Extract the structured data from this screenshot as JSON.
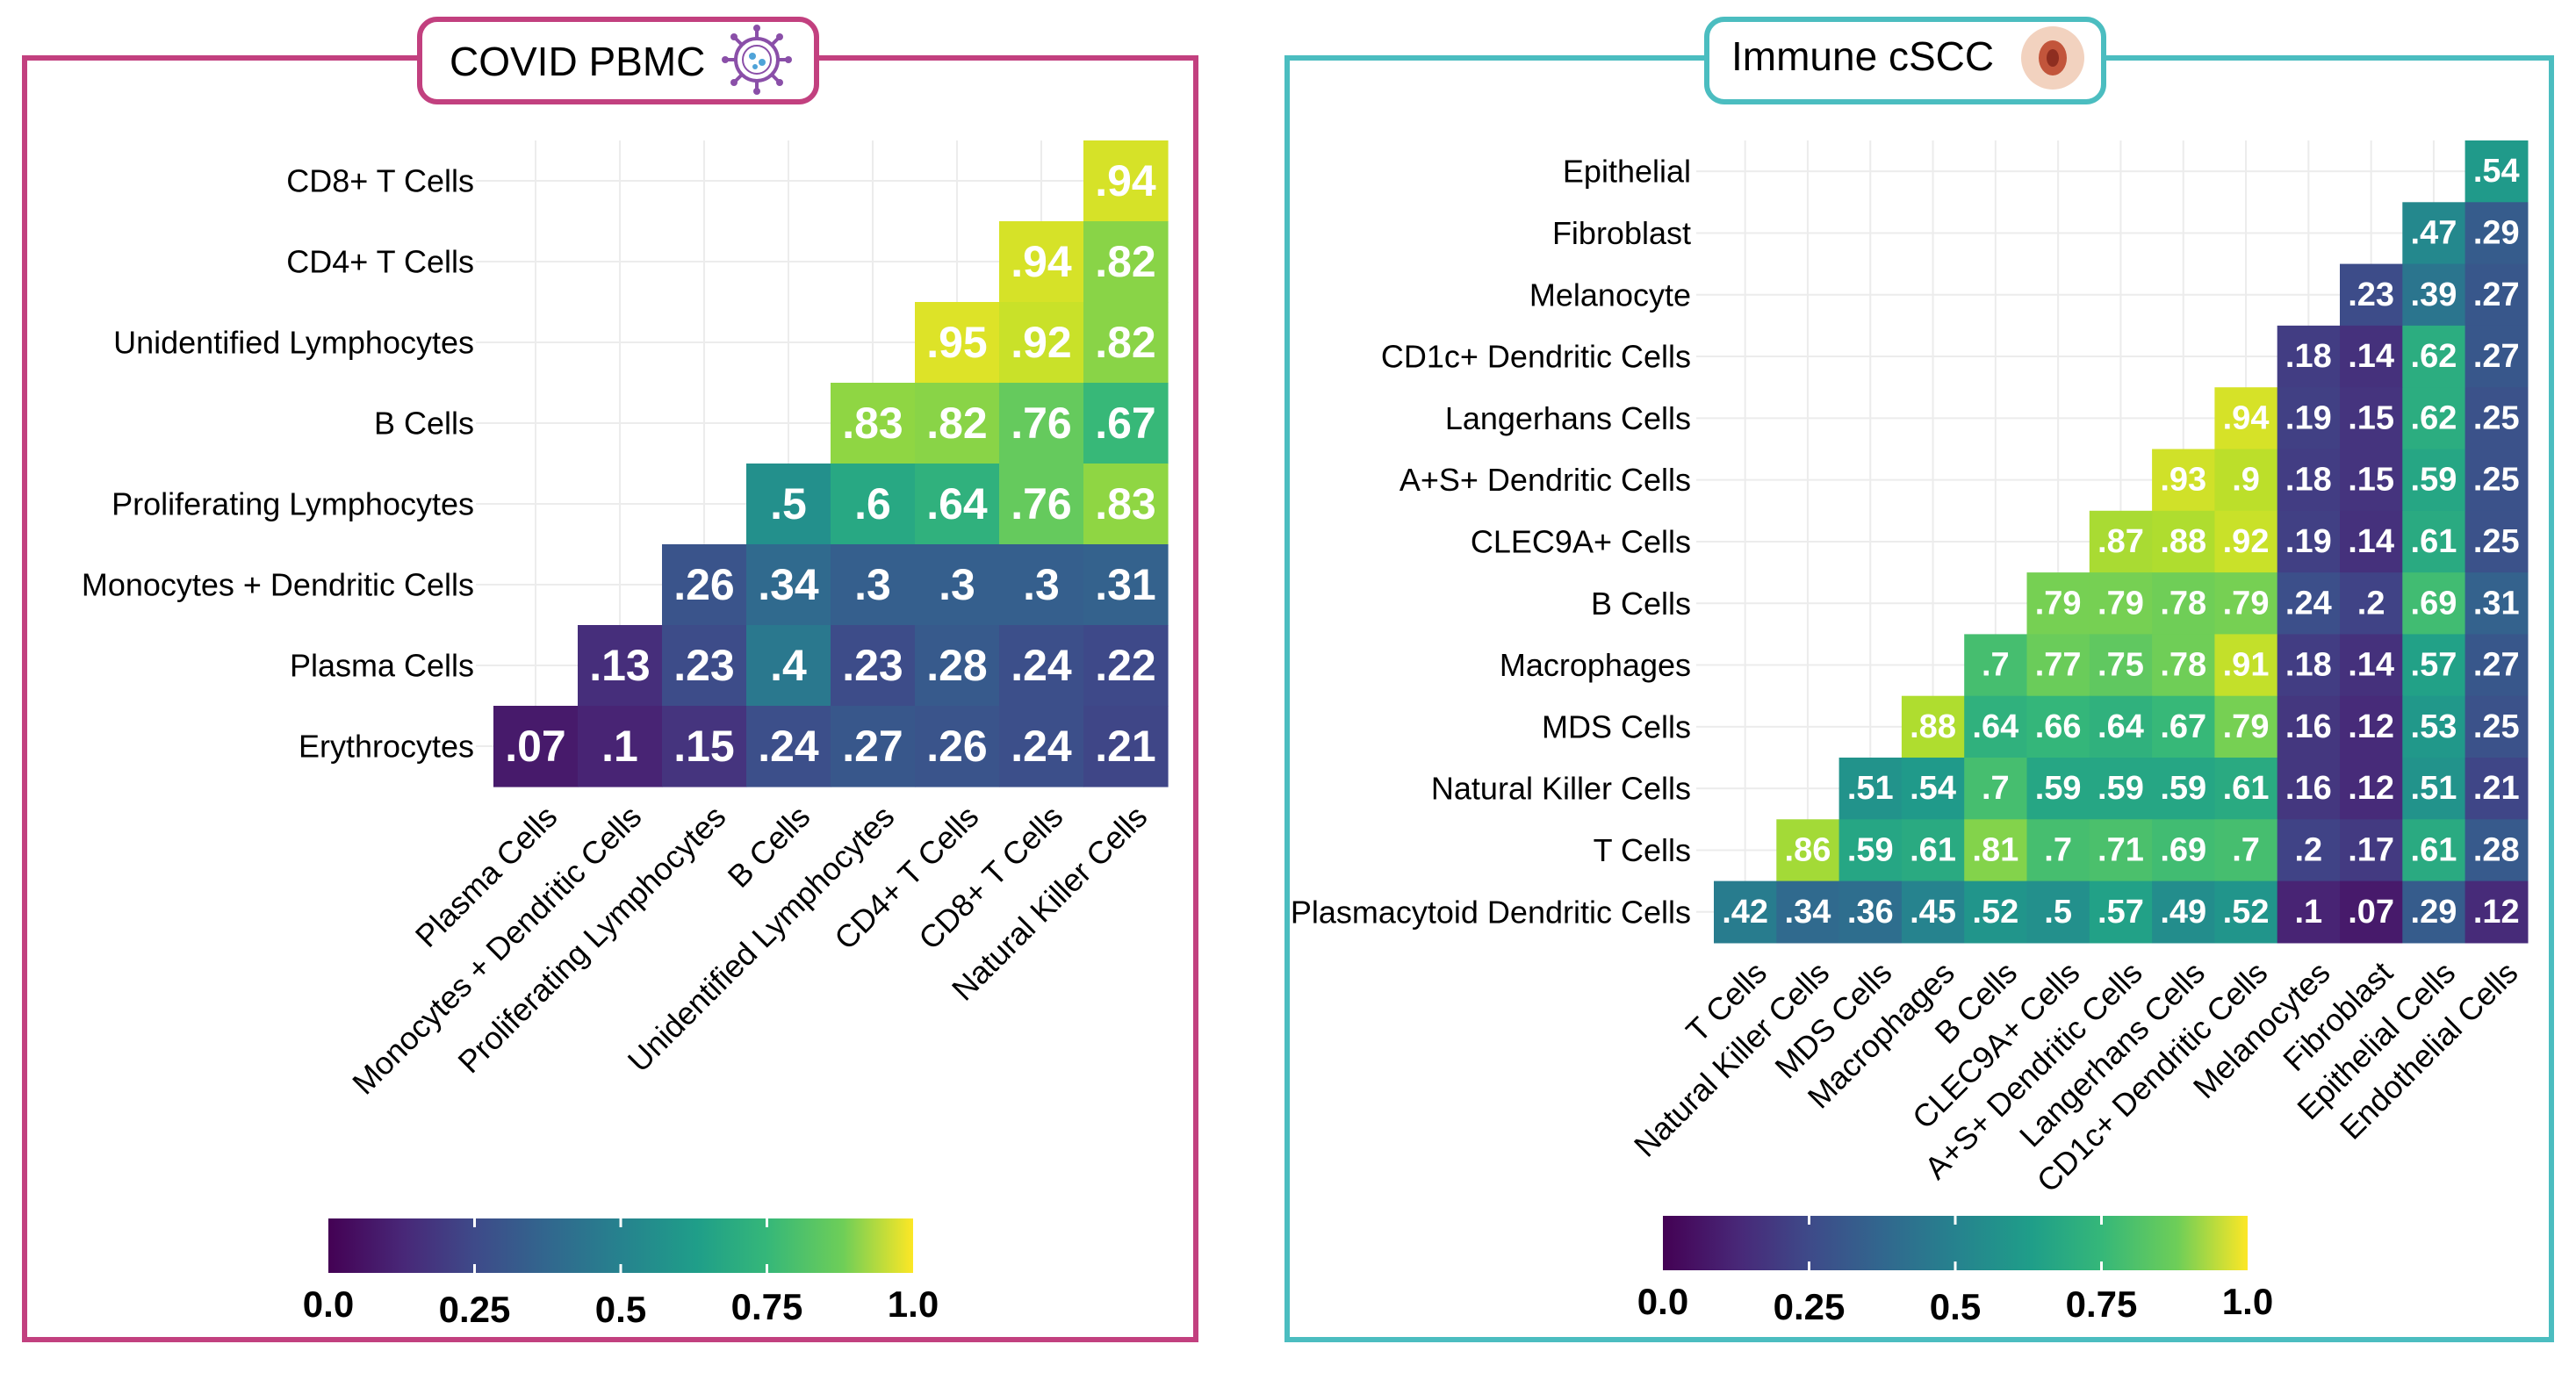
{
  "chart_data": [
    {
      "type": "heatmap",
      "title": "COVID PBMC",
      "title_icon": "virus-icon",
      "accent_color": "#C2407F",
      "row_labels": [
        "CD8+ T Cells",
        "CD4+ T Cells",
        "Unidentified Lymphocytes",
        "B Cells",
        "Proliferating Lymphocytes",
        "Monocytes + Dendritic Cells",
        "Plasma Cells",
        "Erythrocytes"
      ],
      "col_labels": [
        "Plasma Cells",
        "Monocytes + Dendritic Cells",
        "Proliferating Lymphocytes",
        "B Cells",
        "Unidentified Lymphocytes",
        "CD4+ T Cells",
        "CD8+ T Cells",
        "Natural Killer Cells"
      ],
      "cells": [
        [
          null,
          null,
          null,
          null,
          null,
          null,
          null,
          ".94"
        ],
        [
          null,
          null,
          null,
          null,
          null,
          null,
          ".94",
          ".82"
        ],
        [
          null,
          null,
          null,
          null,
          null,
          ".95",
          ".92",
          ".82"
        ],
        [
          null,
          null,
          null,
          null,
          ".83",
          ".82",
          ".76",
          ".67"
        ],
        [
          null,
          null,
          null,
          ".5",
          ".6",
          ".64",
          ".76",
          ".83"
        ],
        [
          null,
          null,
          ".26",
          ".34",
          ".3",
          ".3",
          ".3",
          ".31"
        ],
        [
          null,
          ".13",
          ".23",
          ".4",
          ".23",
          ".28",
          ".24",
          ".22"
        ],
        [
          ".07",
          ".1",
          ".15",
          ".24",
          ".27",
          ".26",
          ".24",
          ".21"
        ]
      ],
      "colorbar": {
        "ticks": [
          "0.0",
          "0.25",
          "0.5",
          "0.75",
          "1.0"
        ],
        "range": [
          0,
          1
        ],
        "colormap": "viridis"
      }
    },
    {
      "type": "heatmap",
      "title": "Immune cSCC",
      "title_icon": "skin-lesion-icon",
      "accent_color": "#4BBDC0",
      "row_labels": [
        "Epithelial",
        "Fibroblast",
        "Melanocyte",
        "CD1c+ Dendritic Cells",
        "Langerhans Cells",
        "A+S+ Dendritic Cells",
        "CLEC9A+ Cells",
        "B Cells",
        "Macrophages",
        "MDS Cells",
        "Natural Killer Cells",
        "T Cells",
        "Plasmacytoid Dendritic Cells"
      ],
      "col_labels": [
        "T Cells",
        "Natural Killer Cells",
        "MDS Cells",
        "Macrophages",
        "B Cells",
        "CLEC9A+ Cells",
        "A+S+ Dendritic Cells",
        "Langerhans Cells",
        "CD1c+ Dendritic Cells",
        "Melanocytes",
        "Fibroblast",
        "Epithelial Cells",
        "Endothelial Cells"
      ],
      "cells": [
        [
          null,
          null,
          null,
          null,
          null,
          null,
          null,
          null,
          null,
          null,
          null,
          null,
          ".54"
        ],
        [
          null,
          null,
          null,
          null,
          null,
          null,
          null,
          null,
          null,
          null,
          null,
          ".47",
          ".29"
        ],
        [
          null,
          null,
          null,
          null,
          null,
          null,
          null,
          null,
          null,
          null,
          ".23",
          ".39",
          ".27"
        ],
        [
          null,
          null,
          null,
          null,
          null,
          null,
          null,
          null,
          null,
          ".18",
          ".14",
          ".62",
          ".27"
        ],
        [
          null,
          null,
          null,
          null,
          null,
          null,
          null,
          null,
          ".94",
          ".19",
          ".15",
          ".62",
          ".25"
        ],
        [
          null,
          null,
          null,
          null,
          null,
          null,
          null,
          ".93",
          ".9",
          ".18",
          ".15",
          ".59",
          ".25"
        ],
        [
          null,
          null,
          null,
          null,
          null,
          null,
          ".87",
          ".88",
          ".92",
          ".19",
          ".14",
          ".61",
          ".25"
        ],
        [
          null,
          null,
          null,
          null,
          null,
          ".79",
          ".79",
          ".78",
          ".79",
          ".24",
          ".2",
          ".69",
          ".31"
        ],
        [
          null,
          null,
          null,
          null,
          ".7",
          ".77",
          ".75",
          ".78",
          ".91",
          ".18",
          ".14",
          ".57",
          ".27"
        ],
        [
          null,
          null,
          null,
          ".88",
          ".64",
          ".66",
          ".64",
          ".67",
          ".79",
          ".16",
          ".12",
          ".53",
          ".25"
        ],
        [
          null,
          null,
          ".51",
          ".54",
          ".7",
          ".59",
          ".59",
          ".59",
          ".61",
          ".16",
          ".12",
          ".51",
          ".21"
        ],
        [
          null,
          ".86",
          ".59",
          ".61",
          ".81",
          ".7",
          ".71",
          ".69",
          ".7",
          ".2",
          ".17",
          ".61",
          ".28"
        ],
        [
          ".42",
          ".34",
          ".36",
          ".45",
          ".52",
          ".5",
          ".57",
          ".49",
          ".52",
          ".1",
          ".07",
          ".29",
          ".12"
        ]
      ],
      "colorbar": {
        "ticks": [
          "0.0",
          "0.25",
          "0.5",
          "0.75",
          "1.0"
        ],
        "range": [
          0,
          1
        ],
        "colormap": "viridis"
      }
    }
  ]
}
